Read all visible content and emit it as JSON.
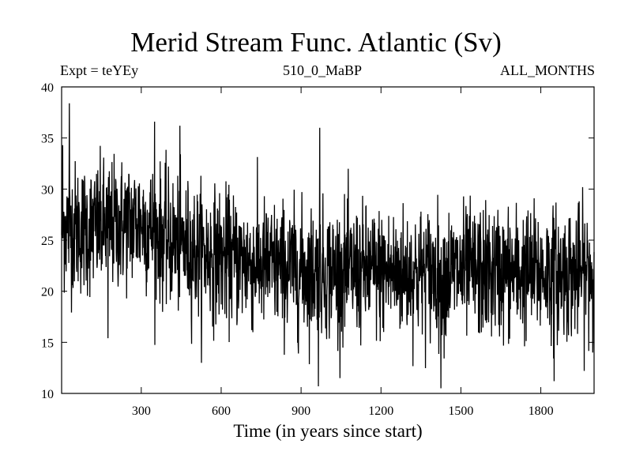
{
  "chart_data": {
    "type": "line",
    "title": "Merid Stream Func. Atlantic (Sv)",
    "subtitle_left": "Expt = teYEy",
    "subtitle_center": "510_0_MaBP",
    "subtitle_right": "ALL_MONTHS",
    "xlabel": "Time (in years since start)",
    "ylabel": "",
    "xlim": [
      1,
      2000
    ],
    "ylim": [
      10,
      40
    ],
    "xticks": [
      300,
      600,
      900,
      1200,
      1500,
      1800
    ],
    "yticks": [
      10,
      15,
      20,
      25,
      30,
      35,
      40
    ],
    "grid": false,
    "series": [
      {
        "name": "Merid Stream Func. Atlantic",
        "color": "#000000",
        "n_points": 2000,
        "mean_profile": {
          "x": [
            1,
            100,
            200,
            300,
            400,
            500,
            700,
            900,
            1200,
            1500,
            1800,
            2000
          ],
          "y": [
            26.5,
            26,
            26.5,
            26.8,
            25,
            24,
            22.8,
            22,
            21.8,
            21.8,
            21.8,
            21.8
          ]
        },
        "noise_std": 3.2,
        "notable_points": [
          {
            "x": 5,
            "y": 34.3
          },
          {
            "x": 30,
            "y": 38.4
          },
          {
            "x": 350,
            "y": 36.6
          },
          {
            "x": 445,
            "y": 36.2
          },
          {
            "x": 970,
            "y": 36
          },
          {
            "x": 965,
            "y": 10.7
          },
          {
            "x": 1425,
            "y": 10.5
          },
          {
            "x": 1850,
            "y": 11.2
          },
          {
            "x": 175,
            "y": 15.4
          },
          {
            "x": 1995,
            "y": 14
          }
        ]
      }
    ]
  }
}
